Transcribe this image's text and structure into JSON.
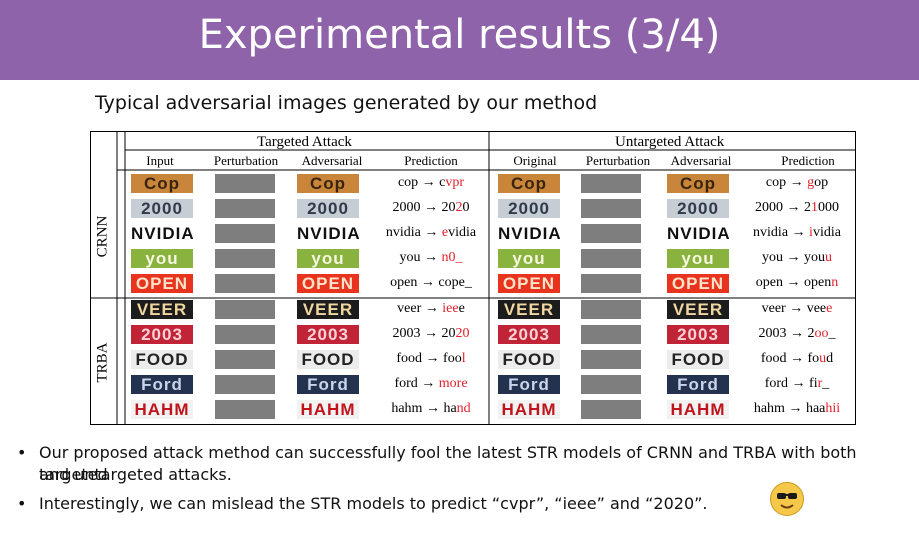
{
  "slide": {
    "title": "Experimental results (3/4)",
    "subtitle": "Typical adversarial images generated by our method"
  },
  "table": {
    "group_targeted": "Targeted Attack",
    "group_untargeted": "Untargeted Attack",
    "headers_targeted": [
      "Input",
      "Perturbation",
      "Adversarial",
      "Prediction"
    ],
    "headers_untargeted": [
      "Original",
      "Perturbation",
      "Adversarial",
      "Prediction"
    ],
    "sections": [
      {
        "model": "CRNN",
        "rows": [
          {
            "word": "Cop",
            "img_bg": "#c9863a",
            "img_fg": "#3a2410",
            "targeted": {
              "src": "cop",
              "arrow": "→",
              "pre": "c",
              "red": "vpr",
              "post": ""
            },
            "untargeted": {
              "src": "cop",
              "arrow": "→",
              "pre": "",
              "red": "g",
              "post": "op"
            }
          },
          {
            "word": "2000",
            "img_bg": "#c7cdd5",
            "img_fg": "#2f3a4a",
            "targeted": {
              "src": "2000",
              "arrow": "→",
              "pre": "20",
              "red": "2",
              "post": "0"
            },
            "untargeted": {
              "src": "2000",
              "arrow": "→",
              "pre": "2",
              "red": "1",
              "post": "000"
            }
          },
          {
            "word": "NVIDIA",
            "img_bg": "#ffffff",
            "img_fg": "#111111",
            "targeted": {
              "src": "nvidia",
              "arrow": "→",
              "pre": "",
              "red": "e",
              "post": "vidia"
            },
            "untargeted": {
              "src": "nvidia",
              "arrow": "→",
              "pre": "",
              "red": "i",
              "post": "vidia"
            }
          },
          {
            "word": "you",
            "img_bg": "#8ab23f",
            "img_fg": "#f5f7e0",
            "targeted": {
              "src": "you",
              "arrow": "→",
              "pre": "",
              "red": "n0_",
              "post": ""
            },
            "untargeted": {
              "src": "you",
              "arrow": "→",
              "pre": "you",
              "red": "u",
              "post": ""
            }
          },
          {
            "word": "OPEN",
            "img_bg": "#e8331f",
            "img_fg": "#ffe3c8",
            "targeted": {
              "src": "open",
              "arrow": "→",
              "pre": "cope",
              "red": "",
              "post": "_"
            },
            "untargeted": {
              "src": "open",
              "arrow": "→",
              "pre": "open",
              "red": "n",
              "post": ""
            }
          }
        ]
      },
      {
        "model": "TRBA",
        "rows": [
          {
            "word": "VEER",
            "img_bg": "#1c1c1c",
            "img_fg": "#f0d6a0",
            "targeted": {
              "src": "veer",
              "arrow": "→",
              "pre": "",
              "red": "iee",
              "post": "e"
            },
            "untargeted": {
              "src": "veer",
              "arrow": "→",
              "pre": "vee",
              "red": "e",
              "post": ""
            }
          },
          {
            "word": "2003",
            "img_bg": "#c02436",
            "img_fg": "#ffd1d6",
            "targeted": {
              "src": "2003",
              "arrow": "→",
              "pre": "20",
              "red": "20",
              "post": ""
            },
            "untargeted": {
              "src": "2003",
              "arrow": "→",
              "pre": "2",
              "red": "oo",
              "post": "_"
            }
          },
          {
            "word": "FOOD",
            "img_bg": "#ececec",
            "img_fg": "#222222",
            "targeted": {
              "src": "food",
              "arrow": "→",
              "pre": "foo",
              "red": "l",
              "post": ""
            },
            "untargeted": {
              "src": "food",
              "arrow": "→",
              "pre": "fo",
              "red": "u",
              "post": "d"
            }
          },
          {
            "word": "Ford",
            "img_bg": "#23324f",
            "img_fg": "#c9d4ea",
            "targeted": {
              "src": "ford",
              "arrow": "→",
              "pre": "",
              "red": "more",
              "post": ""
            },
            "untargeted": {
              "src": "ford",
              "arrow": "→",
              "pre": "fi",
              "red": "r",
              "post": "_"
            }
          },
          {
            "word": "HAHM",
            "img_bg": "#f2f2f2",
            "img_fg": "#c0141c",
            "targeted": {
              "src": "hahm",
              "arrow": "→",
              "pre": "ha",
              "red": "nd",
              "post": ""
            },
            "untargeted": {
              "src": "hahm",
              "arrow": "→",
              "pre": "haa",
              "red": "hii",
              "post": ""
            }
          }
        ]
      }
    ]
  },
  "bullets": [
    {
      "dot": "•",
      "lines": [
        "Our proposed attack method can successfully fool the latest STR models of CRNN and TRBA with both targeted",
        "and untargeted attacks."
      ]
    },
    {
      "dot": "•",
      "lines": [
        "Interestingly, we can mislead the STR models to predict “cvpr”, “ieee” and “2020”."
      ]
    }
  ],
  "icons": {
    "emoji": "smiling-face-with-sunglasses-icon"
  },
  "colors": {
    "title_bar": "#8e63a9",
    "red": "#e0202a",
    "perturbation": "#7e7e7e"
  }
}
